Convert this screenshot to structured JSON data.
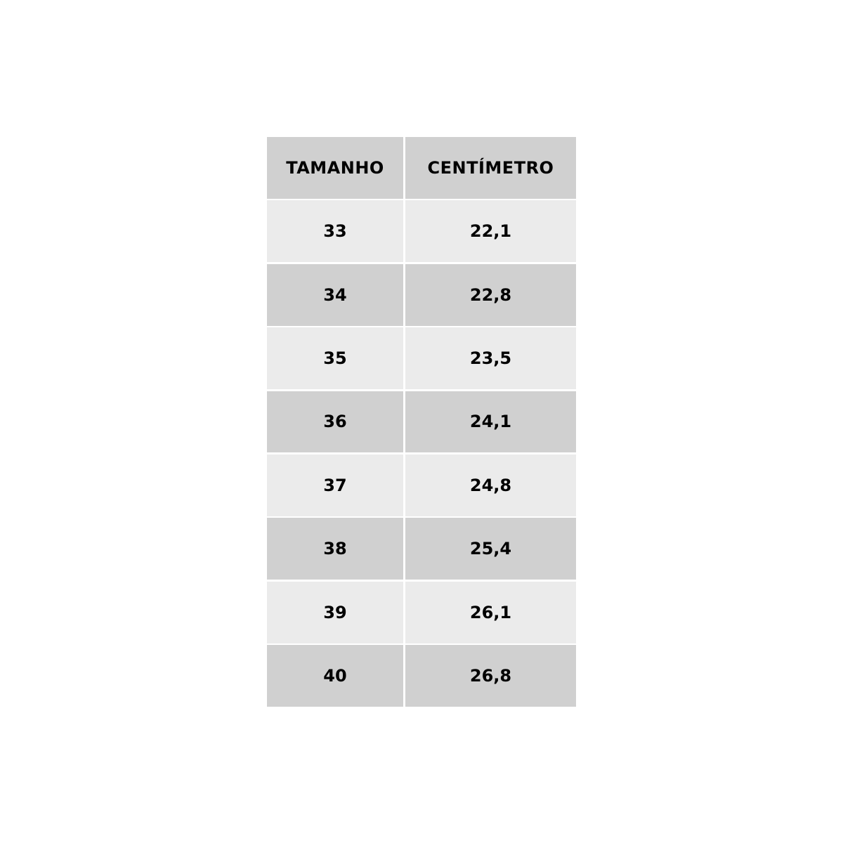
{
  "table": {
    "headers": [
      "TAMANHO",
      "CENTÍMETRO"
    ],
    "rows": [
      [
        "33",
        "22,1"
      ],
      [
        "34",
        "22,8"
      ],
      [
        "35",
        "23,5"
      ],
      [
        "36",
        "24,1"
      ],
      [
        "37",
        "24,8"
      ],
      [
        "38",
        "25,4"
      ],
      [
        "39",
        "26,1"
      ],
      [
        "40",
        "26,8"
      ]
    ],
    "colors": {
      "header": "#d0d0d0",
      "row_light": "#ebebeb",
      "row_dark": "#d0d0d0"
    }
  }
}
